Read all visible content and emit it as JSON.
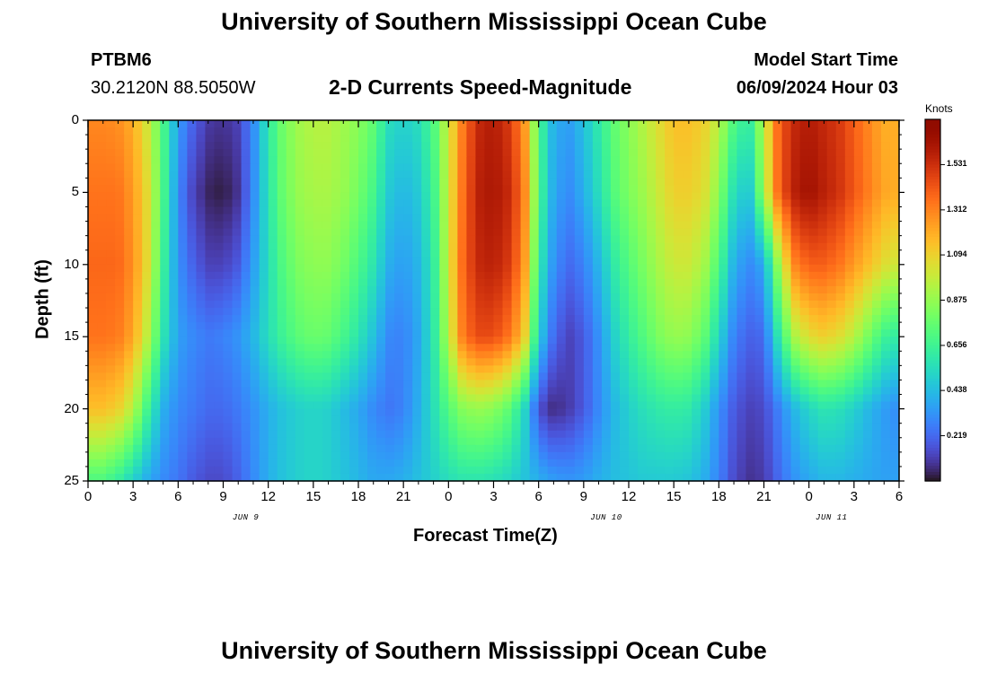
{
  "header": {
    "title": "University of Southern Mississippi Ocean Cube",
    "station_id": "PTBM6",
    "coordinates": "30.2120N  88.5050W",
    "plot_title": "2-D Currents Speed-Magnitude",
    "model_label": "Model Start Time",
    "model_time": "06/09/2024 Hour 03"
  },
  "footer": {
    "title": "University of Southern Mississippi Ocean Cube"
  },
  "chart_data": {
    "type": "heatmap",
    "title": "2-D Currents Speed-Magnitude",
    "xlabel": "Forecast Time(Z)",
    "ylabel": "Depth (ft)",
    "x_tick_labels": [
      "0",
      "3",
      "6",
      "9",
      "12",
      "15",
      "18",
      "21",
      "0",
      "3",
      "6",
      "9",
      "12",
      "15",
      "18",
      "21",
      "0",
      "3",
      "6"
    ],
    "date_labels": [
      "JUN 9",
      "JUN 10",
      "JUN 11"
    ],
    "y_tick_labels": [
      "0",
      "5",
      "10",
      "15",
      "20",
      "25"
    ],
    "ylim": [
      0,
      25
    ],
    "y_inverted": true,
    "colorbar": {
      "title": "Knots",
      "min": 0,
      "max": 1.75,
      "tick_labels": [
        "1.531",
        "1.312",
        "1.094",
        "0.875",
        "0.656",
        "0.438",
        "0.219"
      ],
      "tick_values": [
        1.531,
        1.312,
        1.094,
        0.875,
        0.656,
        0.438,
        0.219
      ],
      "colormap": "turbo"
    },
    "depth_rows_ft": [
      0,
      5,
      10,
      15,
      20,
      25
    ],
    "time_columns_hours_from_start": [
      0,
      1,
      2,
      3,
      4,
      5,
      6,
      7,
      8,
      9,
      10,
      11,
      12,
      13,
      14,
      15,
      16,
      17,
      18,
      19,
      20,
      21,
      22,
      23,
      24,
      25,
      26,
      27,
      28,
      29,
      30,
      31,
      32,
      33,
      34,
      35,
      36,
      37,
      38,
      39,
      40,
      41,
      42,
      43,
      44,
      45,
      46,
      47,
      48,
      49,
      50,
      51,
      52,
      53,
      54
    ],
    "speed_knots": [
      [
        1.3,
        1.3,
        1.28,
        1.2,
        1.0,
        0.7,
        0.35,
        0.2,
        0.1,
        0.08,
        0.12,
        0.3,
        0.6,
        0.8,
        0.9,
        0.95,
        0.95,
        0.9,
        0.85,
        0.75,
        0.55,
        0.5,
        0.55,
        0.7,
        1.0,
        1.35,
        1.55,
        1.6,
        1.5,
        1.3,
        0.7,
        0.4,
        0.35,
        0.45,
        0.6,
        0.75,
        0.85,
        0.95,
        1.05,
        1.15,
        1.15,
        1.1,
        0.95,
        0.7,
        0.6,
        0.95,
        1.4,
        1.55,
        1.6,
        1.55,
        1.5,
        1.4,
        1.3,
        1.2,
        1.2
      ],
      [
        1.35,
        1.35,
        1.35,
        1.25,
        1.05,
        0.7,
        0.3,
        0.12,
        0.04,
        0.02,
        0.08,
        0.3,
        0.58,
        0.78,
        0.88,
        0.92,
        0.92,
        0.88,
        0.8,
        0.68,
        0.48,
        0.42,
        0.48,
        0.65,
        1.0,
        1.38,
        1.58,
        1.62,
        1.55,
        1.35,
        0.7,
        0.38,
        0.3,
        0.4,
        0.55,
        0.72,
        0.82,
        0.9,
        1.0,
        1.1,
        1.1,
        1.05,
        0.85,
        0.55,
        0.45,
        0.9,
        1.4,
        1.58,
        1.65,
        1.58,
        1.52,
        1.42,
        1.32,
        1.22,
        1.2
      ],
      [
        1.38,
        1.38,
        1.38,
        1.28,
        1.05,
        0.65,
        0.32,
        0.2,
        0.12,
        0.12,
        0.18,
        0.35,
        0.55,
        0.72,
        0.82,
        0.86,
        0.86,
        0.8,
        0.7,
        0.58,
        0.4,
        0.35,
        0.42,
        0.6,
        1.0,
        1.4,
        1.55,
        1.58,
        1.5,
        1.3,
        0.62,
        0.32,
        0.22,
        0.28,
        0.42,
        0.6,
        0.72,
        0.82,
        0.92,
        1.0,
        1.0,
        0.92,
        0.7,
        0.4,
        0.3,
        0.38,
        0.9,
        1.3,
        1.4,
        1.4,
        1.35,
        1.25,
        1.15,
        1.05,
        1.0
      ],
      [
        1.35,
        1.35,
        1.33,
        1.22,
        0.95,
        0.58,
        0.36,
        0.3,
        0.26,
        0.28,
        0.33,
        0.42,
        0.55,
        0.66,
        0.74,
        0.78,
        0.76,
        0.68,
        0.58,
        0.45,
        0.3,
        0.28,
        0.38,
        0.58,
        0.95,
        1.35,
        1.45,
        1.45,
        1.35,
        1.15,
        0.5,
        0.22,
        0.12,
        0.18,
        0.32,
        0.5,
        0.62,
        0.72,
        0.82,
        0.88,
        0.86,
        0.76,
        0.52,
        0.28,
        0.2,
        0.22,
        0.6,
        0.92,
        1.05,
        1.1,
        1.05,
        0.95,
        0.8,
        0.65,
        0.6
      ],
      [
        1.15,
        1.15,
        1.1,
        0.95,
        0.65,
        0.4,
        0.3,
        0.26,
        0.22,
        0.22,
        0.26,
        0.32,
        0.4,
        0.46,
        0.5,
        0.52,
        0.5,
        0.44,
        0.38,
        0.3,
        0.25,
        0.28,
        0.4,
        0.55,
        0.72,
        0.85,
        0.88,
        0.85,
        0.75,
        0.55,
        0.15,
        0.06,
        0.1,
        0.18,
        0.3,
        0.42,
        0.5,
        0.56,
        0.6,
        0.62,
        0.6,
        0.5,
        0.32,
        0.18,
        0.12,
        0.14,
        0.28,
        0.42,
        0.52,
        0.58,
        0.56,
        0.5,
        0.42,
        0.35,
        0.3
      ],
      [
        0.7,
        0.7,
        0.62,
        0.5,
        0.38,
        0.3,
        0.25,
        0.18,
        0.14,
        0.14,
        0.2,
        0.3,
        0.4,
        0.46,
        0.5,
        0.52,
        0.5,
        0.46,
        0.42,
        0.38,
        0.38,
        0.4,
        0.45,
        0.5,
        0.55,
        0.58,
        0.58,
        0.56,
        0.52,
        0.46,
        0.4,
        0.35,
        0.33,
        0.35,
        0.4,
        0.44,
        0.46,
        0.48,
        0.48,
        0.48,
        0.46,
        0.4,
        0.28,
        0.14,
        0.08,
        0.1,
        0.22,
        0.32,
        0.38,
        0.42,
        0.42,
        0.4,
        0.38,
        0.36,
        0.36
      ]
    ]
  }
}
